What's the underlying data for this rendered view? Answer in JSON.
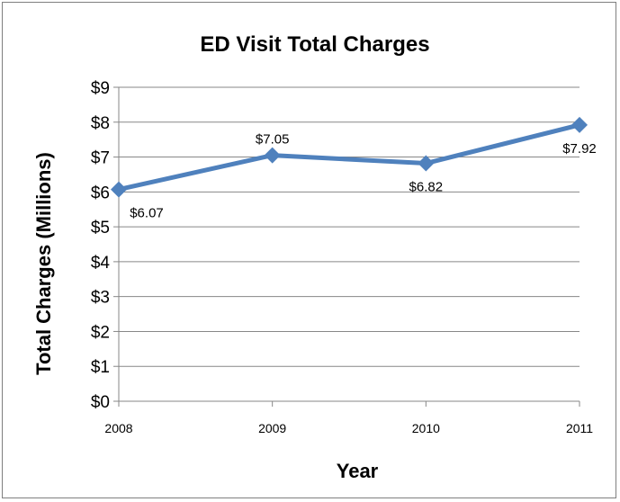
{
  "chart_data": {
    "type": "line",
    "title": "ED Visit Total Charges",
    "xlabel": "Year",
    "ylabel": "Total Charges (Millions)",
    "categories": [
      "2008",
      "2009",
      "2010",
      "2011"
    ],
    "series": [
      {
        "values": [
          6.07,
          7.05,
          6.82,
          7.92
        ],
        "data_labels": [
          "$6.07",
          "$7.05",
          "$6.82",
          "$7.92"
        ]
      }
    ],
    "ylim": [
      0,
      9
    ],
    "yticks": [
      0,
      1,
      2,
      3,
      4,
      5,
      6,
      7,
      8,
      9
    ],
    "ytick_labels": [
      "$0",
      "$1",
      "$2",
      "$3",
      "$4",
      "$5",
      "$6",
      "$7",
      "$8",
      "$9"
    ],
    "grid": true,
    "legend": "none",
    "colors": {
      "series": "#4f81bd",
      "grid": "#878787",
      "border": "#7f7f7f"
    },
    "marker": "diamond"
  }
}
